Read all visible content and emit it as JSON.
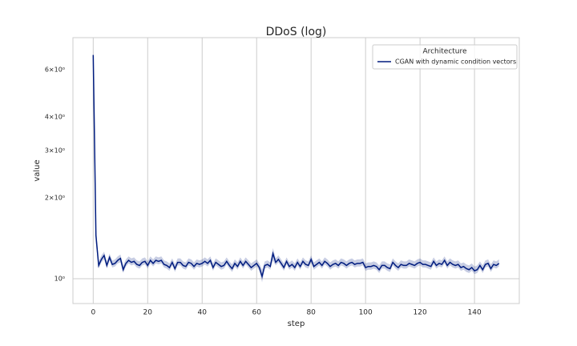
{
  "chart_data": {
    "type": "line",
    "title": "DDoS (log)",
    "x_label": "step",
    "y_label": "value",
    "log_y": true,
    "grid": true,
    "legend_title": "Architecture",
    "legend_position": "upper right",
    "xlim": [
      -7.45,
      156.45
    ],
    "xticks": [
      0,
      20,
      40,
      60,
      80,
      100,
      120,
      140
    ],
    "ylim": [
      0.808,
      7.89
    ],
    "yticks": [
      {
        "value": 1,
        "label": "10⁰"
      },
      {
        "value": 2,
        "label": "2×10⁰"
      },
      {
        "value": 3,
        "label": "3×10⁰"
      },
      {
        "value": 4,
        "label": "4×10⁰"
      },
      {
        "value": 6,
        "label": "6×10⁰"
      }
    ],
    "x": [
      0,
      1,
      2,
      3,
      4,
      5,
      6,
      7,
      8,
      9,
      10,
      11,
      12,
      13,
      14,
      15,
      16,
      17,
      18,
      19,
      20,
      21,
      22,
      23,
      24,
      25,
      26,
      27,
      28,
      29,
      30,
      31,
      32,
      33,
      34,
      35,
      36,
      37,
      38,
      39,
      40,
      41,
      42,
      43,
      44,
      45,
      46,
      47,
      48,
      49,
      50,
      51,
      52,
      53,
      54,
      55,
      56,
      57,
      58,
      59,
      60,
      61,
      62,
      63,
      64,
      65,
      66,
      67,
      68,
      69,
      70,
      71,
      72,
      73,
      74,
      75,
      76,
      77,
      78,
      79,
      80,
      81,
      82,
      83,
      84,
      85,
      86,
      87,
      88,
      89,
      90,
      91,
      92,
      93,
      94,
      95,
      96,
      97,
      98,
      99,
      100,
      101,
      102,
      103,
      104,
      105,
      106,
      107,
      108,
      109,
      110,
      111,
      112,
      113,
      114,
      115,
      116,
      117,
      118,
      119,
      120,
      121,
      122,
      123,
      124,
      125,
      126,
      127,
      128,
      129,
      130,
      131,
      132,
      133,
      134,
      135,
      136,
      137,
      138,
      139,
      140,
      141,
      142,
      143,
      144,
      145,
      146,
      147,
      148,
      149
    ],
    "series": [
      {
        "name": "CGAN with dynamic condition vectors",
        "color": "#001c7f",
        "values": [
          6.8,
          1.45,
          1.12,
          1.18,
          1.22,
          1.12,
          1.2,
          1.13,
          1.14,
          1.17,
          1.19,
          1.08,
          1.14,
          1.17,
          1.15,
          1.16,
          1.13,
          1.12,
          1.15,
          1.16,
          1.12,
          1.17,
          1.14,
          1.17,
          1.16,
          1.17,
          1.13,
          1.12,
          1.1,
          1.15,
          1.09,
          1.15,
          1.15,
          1.12,
          1.11,
          1.15,
          1.14,
          1.11,
          1.14,
          1.13,
          1.14,
          1.16,
          1.14,
          1.17,
          1.1,
          1.15,
          1.13,
          1.11,
          1.12,
          1.16,
          1.12,
          1.09,
          1.14,
          1.11,
          1.16,
          1.12,
          1.16,
          1.13,
          1.1,
          1.12,
          1.14,
          1.1,
          1.02,
          1.12,
          1.13,
          1.11,
          1.24,
          1.15,
          1.18,
          1.14,
          1.1,
          1.16,
          1.11,
          1.13,
          1.1,
          1.15,
          1.11,
          1.16,
          1.13,
          1.12,
          1.18,
          1.11,
          1.13,
          1.15,
          1.12,
          1.16,
          1.14,
          1.11,
          1.13,
          1.14,
          1.12,
          1.15,
          1.14,
          1.12,
          1.14,
          1.15,
          1.13,
          1.14,
          1.14,
          1.15,
          1.1,
          1.11,
          1.11,
          1.12,
          1.11,
          1.08,
          1.12,
          1.12,
          1.1,
          1.09,
          1.15,
          1.12,
          1.1,
          1.13,
          1.12,
          1.12,
          1.14,
          1.13,
          1.12,
          1.14,
          1.15,
          1.13,
          1.13,
          1.12,
          1.11,
          1.16,
          1.12,
          1.14,
          1.13,
          1.17,
          1.12,
          1.15,
          1.13,
          1.12,
          1.13,
          1.1,
          1.11,
          1.09,
          1.08,
          1.1,
          1.07,
          1.08,
          1.12,
          1.08,
          1.13,
          1.14,
          1.09,
          1.13,
          1.12,
          1.14
        ],
        "lower": [
          6.4,
          1.35,
          1.09,
          1.15,
          1.18,
          1.09,
          1.17,
          1.1,
          1.11,
          1.14,
          1.15,
          1.05,
          1.11,
          1.14,
          1.12,
          1.13,
          1.1,
          1.09,
          1.12,
          1.13,
          1.09,
          1.14,
          1.11,
          1.14,
          1.13,
          1.14,
          1.1,
          1.09,
          1.07,
          1.12,
          1.06,
          1.12,
          1.12,
          1.09,
          1.08,
          1.12,
          1.11,
          1.08,
          1.11,
          1.1,
          1.11,
          1.13,
          1.11,
          1.14,
          1.07,
          1.12,
          1.1,
          1.08,
          1.09,
          1.13,
          1.09,
          1.06,
          1.11,
          1.08,
          1.13,
          1.09,
          1.13,
          1.1,
          1.07,
          1.09,
          1.11,
          1.07,
          0.97,
          1.09,
          1.1,
          1.08,
          1.17,
          1.12,
          1.15,
          1.11,
          1.07,
          1.13,
          1.08,
          1.1,
          1.07,
          1.12,
          1.08,
          1.13,
          1.1,
          1.09,
          1.15,
          1.08,
          1.1,
          1.12,
          1.09,
          1.13,
          1.11,
          1.08,
          1.1,
          1.11,
          1.09,
          1.12,
          1.11,
          1.09,
          1.11,
          1.12,
          1.1,
          1.11,
          1.11,
          1.12,
          1.07,
          1.08,
          1.08,
          1.09,
          1.08,
          1.05,
          1.09,
          1.09,
          1.07,
          1.06,
          1.12,
          1.09,
          1.07,
          1.1,
          1.09,
          1.09,
          1.11,
          1.1,
          1.09,
          1.11,
          1.12,
          1.1,
          1.1,
          1.09,
          1.08,
          1.13,
          1.09,
          1.11,
          1.1,
          1.14,
          1.09,
          1.12,
          1.1,
          1.09,
          1.1,
          1.07,
          1.08,
          1.06,
          1.05,
          1.07,
          1.04,
          1.05,
          1.09,
          1.05,
          1.1,
          1.11,
          1.06,
          1.1,
          1.09,
          1.11
        ],
        "upper": [
          7.2,
          1.55,
          1.16,
          1.22,
          1.26,
          1.16,
          1.24,
          1.17,
          1.18,
          1.21,
          1.23,
          1.12,
          1.18,
          1.21,
          1.19,
          1.2,
          1.17,
          1.16,
          1.19,
          1.2,
          1.16,
          1.21,
          1.18,
          1.21,
          1.2,
          1.21,
          1.17,
          1.16,
          1.14,
          1.19,
          1.13,
          1.19,
          1.19,
          1.16,
          1.15,
          1.19,
          1.18,
          1.15,
          1.18,
          1.17,
          1.18,
          1.2,
          1.18,
          1.21,
          1.14,
          1.19,
          1.17,
          1.15,
          1.16,
          1.2,
          1.16,
          1.13,
          1.18,
          1.15,
          1.2,
          1.16,
          1.2,
          1.17,
          1.14,
          1.16,
          1.18,
          1.14,
          1.08,
          1.16,
          1.17,
          1.15,
          1.3,
          1.19,
          1.22,
          1.18,
          1.14,
          1.2,
          1.15,
          1.17,
          1.14,
          1.19,
          1.15,
          1.2,
          1.17,
          1.16,
          1.22,
          1.15,
          1.17,
          1.19,
          1.16,
          1.2,
          1.18,
          1.15,
          1.17,
          1.18,
          1.16,
          1.19,
          1.18,
          1.16,
          1.18,
          1.19,
          1.17,
          1.18,
          1.18,
          1.19,
          1.14,
          1.15,
          1.15,
          1.16,
          1.15,
          1.12,
          1.16,
          1.16,
          1.14,
          1.13,
          1.19,
          1.16,
          1.14,
          1.17,
          1.16,
          1.16,
          1.18,
          1.17,
          1.16,
          1.18,
          1.19,
          1.17,
          1.17,
          1.16,
          1.15,
          1.2,
          1.16,
          1.18,
          1.17,
          1.21,
          1.16,
          1.19,
          1.17,
          1.16,
          1.17,
          1.14,
          1.15,
          1.13,
          1.12,
          1.14,
          1.11,
          1.12,
          1.16,
          1.12,
          1.17,
          1.18,
          1.13,
          1.17,
          1.16,
          1.18
        ]
      }
    ]
  }
}
